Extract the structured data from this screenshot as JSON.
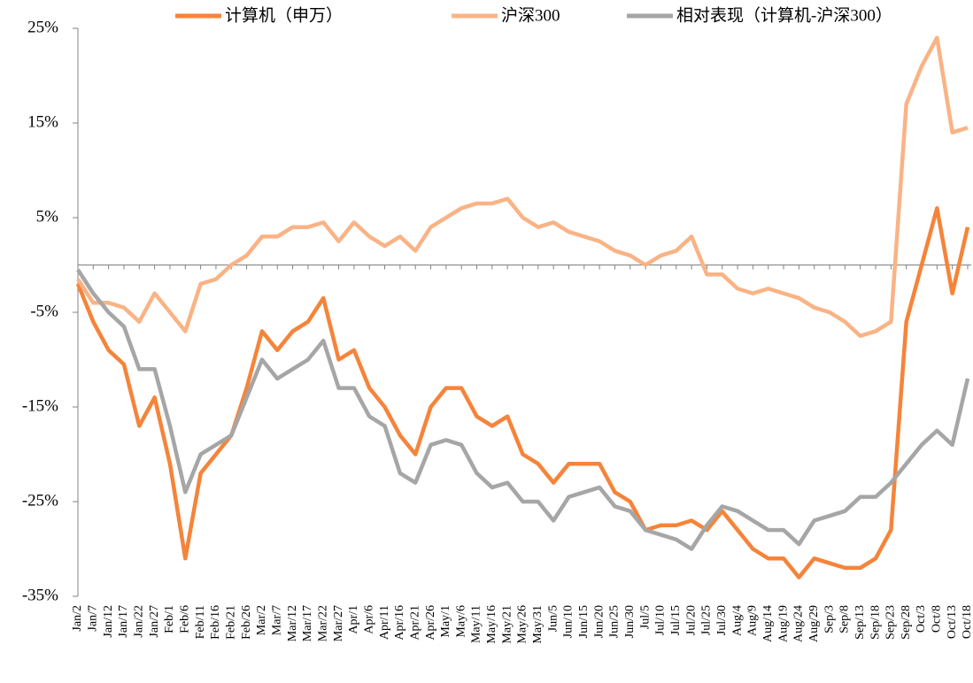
{
  "chart_data": {
    "type": "line",
    "categories": [
      "Jan/2",
      "Jan/7",
      "Jan/12",
      "Jan/17",
      "Jan/22",
      "Jan/27",
      "Feb/1",
      "Feb/6",
      "Feb/11",
      "Feb/16",
      "Feb/21",
      "Feb/26",
      "Mar/2",
      "Mar/7",
      "Mar/12",
      "Mar/17",
      "Mar/22",
      "Mar/27",
      "Apr/1",
      "Apr/6",
      "Apr/11",
      "Apr/16",
      "Apr/21",
      "Apr/26",
      "May/1",
      "May/6",
      "May/11",
      "May/16",
      "May/21",
      "May/26",
      "May/31",
      "Jun/5",
      "Jun/10",
      "Jun/15",
      "Jun/20",
      "Jun/25",
      "Jun/30",
      "Jul/5",
      "Jul/10",
      "Jul/15",
      "Jul/20",
      "Jul/25",
      "Jul/30",
      "Aug/4",
      "Aug/9",
      "Aug/14",
      "Aug/19",
      "Aug/24",
      "Aug/29",
      "Sep/3",
      "Sep/8",
      "Sep/13",
      "Sep/18",
      "Sep/23",
      "Sep/28",
      "Oct/3",
      "Oct/8",
      "Oct/13",
      "Oct/18"
    ],
    "series": [
      {
        "name": "计算机（申万）",
        "color": "#f5843a",
        "values": [
          -2,
          -6,
          -9,
          -10.5,
          -17,
          -14,
          -21,
          -31,
          -22,
          -20,
          -18,
          -13,
          -7,
          -9,
          -7,
          -6,
          -3.5,
          -10,
          -9,
          -13,
          -15,
          -18,
          -20,
          -15,
          -13,
          -13,
          -16,
          -17,
          -16,
          -20,
          -21,
          -23,
          -21,
          -21,
          -21,
          -24,
          -25,
          -28,
          -27.5,
          -27.5,
          -27,
          -28,
          -26,
          -28,
          -30,
          -31,
          -31,
          -33,
          -31,
          -31.5,
          -32,
          -32,
          -31,
          -28,
          -6,
          0,
          6,
          -3,
          4
        ]
      },
      {
        "name": "沪深300",
        "color": "#f9b385",
        "values": [
          -1.5,
          -4,
          -4,
          -4.5,
          -6,
          -3,
          -5,
          -7,
          -2,
          -1.5,
          0,
          1,
          3,
          3,
          4,
          4,
          4.5,
          2.5,
          4.5,
          3,
          2,
          3,
          1.5,
          4,
          5,
          6,
          6.5,
          6.5,
          7,
          5,
          4,
          4.5,
          3.5,
          3,
          2.5,
          1.5,
          1,
          0,
          1,
          1.5,
          3,
          -1,
          -1,
          -2.5,
          -3,
          -2.5,
          -3,
          -3.5,
          -4.5,
          -5,
          -6,
          -7.5,
          -7,
          -6,
          17,
          21,
          24,
          14,
          14.5
        ]
      },
      {
        "name": "相对表现（计算机-沪深300）",
        "color": "#a6a6a6",
        "values": [
          -0.5,
          -3,
          -5,
          -6.5,
          -11,
          -11,
          -17,
          -24,
          -20,
          -19,
          -18,
          -14,
          -10,
          -12,
          -11,
          -10,
          -8,
          -13,
          -13,
          -16,
          -17,
          -22,
          -23,
          -19,
          -18.5,
          -19,
          -22,
          -23.5,
          -23,
          -25,
          -25,
          -27,
          -24.5,
          -24,
          -23.5,
          -25.5,
          -26,
          -28,
          -28.5,
          -29,
          -30,
          -27.5,
          -25.5,
          -26,
          -27,
          -28,
          -28,
          -29.5,
          -27,
          -26.5,
          -26,
          -24.5,
          -24.5,
          -23,
          -21,
          -19,
          -17.5,
          -19,
          -12
        ]
      }
    ],
    "ylim": [
      -35,
      25
    ],
    "yticks": [
      {
        "value": -35,
        "label": "-35%"
      },
      {
        "value": -25,
        "label": "-25%"
      },
      {
        "value": -15,
        "label": "-15%"
      },
      {
        "value": -5,
        "label": "-5%"
      },
      {
        "value": 5,
        "label": "5%"
      },
      {
        "value": 15,
        "label": "15%"
      },
      {
        "value": 25,
        "label": "25%"
      }
    ],
    "legend": "top"
  }
}
